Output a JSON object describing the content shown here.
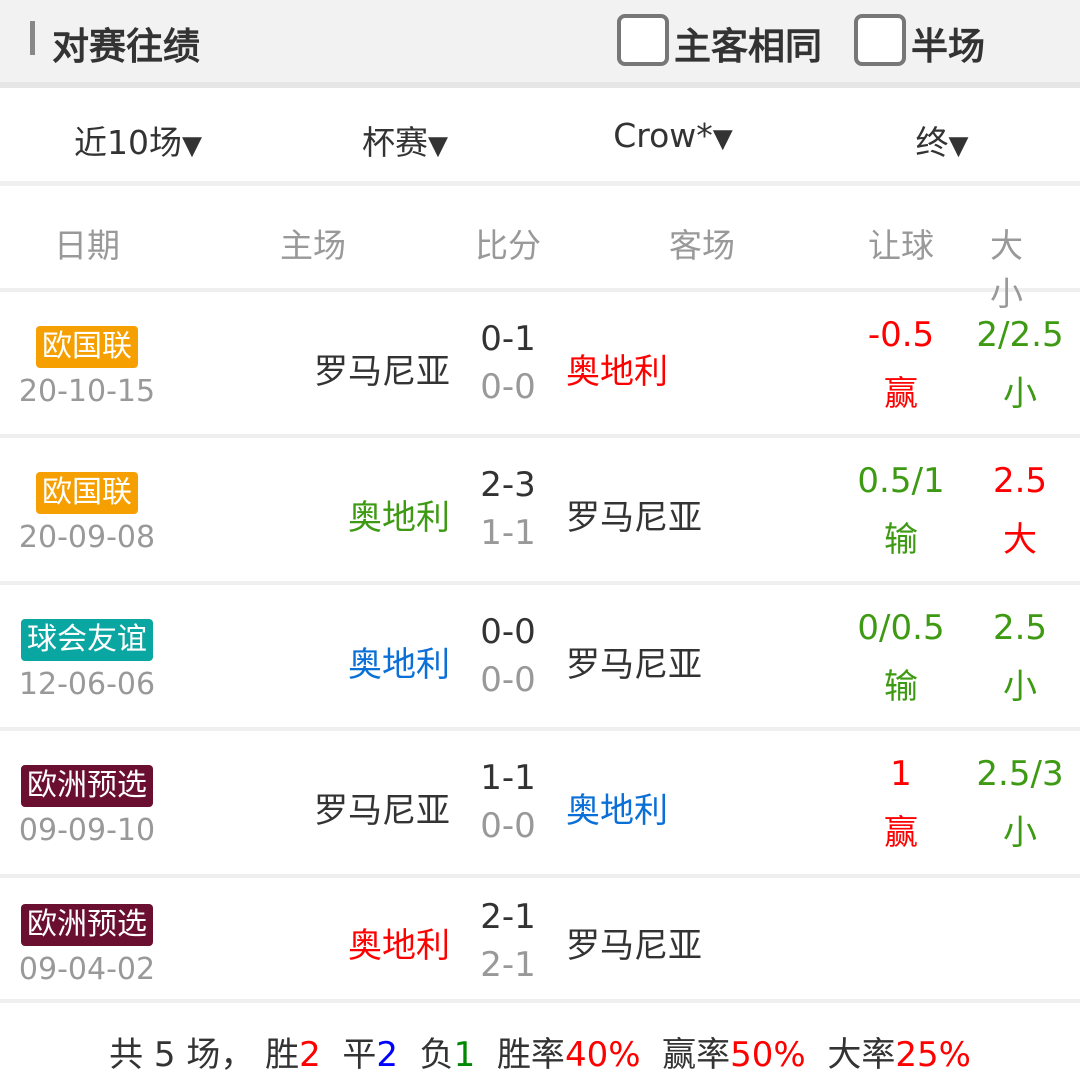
{
  "header": {
    "title": "对赛往绩",
    "same_home_away": "主客相同",
    "half_time": "半场"
  },
  "filters": [
    {
      "label": "近10场"
    },
    {
      "label": "杯赛"
    },
    {
      "label": "Crow*"
    },
    {
      "label": "终"
    }
  ],
  "dropdown_glyph": "▼",
  "columns": [
    "日期",
    "主场",
    "比分",
    "客场",
    "让球",
    "大小"
  ],
  "colors": {
    "red": "#ff0000",
    "green": "#3d9a12",
    "blue": "#0a6fd6",
    "grey": "#999999"
  },
  "rows": [
    {
      "league": "欧国联",
      "league_color": "#f5a000",
      "date": "20-10-15",
      "home": "罗马尼亚",
      "home_color": "#333333",
      "score": "0-1",
      "ht": "0-0",
      "away": "奥地利",
      "away_color": "#ff0000",
      "hcp": "-0.5",
      "hcp_res": "赢",
      "hcp_color": "#ff0000",
      "ou": "2/2.5",
      "ou_res": "小",
      "ou_color": "#3d9a12"
    },
    {
      "league": "欧国联",
      "league_color": "#f5a000",
      "date": "20-09-08",
      "home": "奥地利",
      "home_color": "#3d9a12",
      "score": "2-3",
      "ht": "1-1",
      "away": "罗马尼亚",
      "away_color": "#333333",
      "hcp": "0.5/1",
      "hcp_res": "输",
      "hcp_color": "#3d9a12",
      "ou": "2.5",
      "ou_res": "大",
      "ou_color": "#ff0000"
    },
    {
      "league": "球会友谊",
      "league_color": "#0aa6a2",
      "date": "12-06-06",
      "home": "奥地利",
      "home_color": "#0a6fd6",
      "score": "0-0",
      "ht": "0-0",
      "away": "罗马尼亚",
      "away_color": "#333333",
      "hcp": "0/0.5",
      "hcp_res": "输",
      "hcp_color": "#3d9a12",
      "ou": "2.5",
      "ou_res": "小",
      "ou_color": "#3d9a12"
    },
    {
      "league": "欧洲预选",
      "league_color": "#6b0f30",
      "date": "09-09-10",
      "home": "罗马尼亚",
      "home_color": "#333333",
      "score": "1-1",
      "ht": "0-0",
      "away": "奥地利",
      "away_color": "#0a6fd6",
      "hcp": "1",
      "hcp_res": "赢",
      "hcp_color": "#ff0000",
      "ou": "2.5/3",
      "ou_res": "小",
      "ou_color": "#3d9a12"
    },
    {
      "league": "欧洲预选",
      "league_color": "#6b0f30",
      "date": "09-04-02",
      "home": "奥地利",
      "home_color": "#ff0000",
      "score": "2-1",
      "ht": "2-1",
      "away": "罗马尼亚",
      "away_color": "#333333"
    }
  ],
  "summary": {
    "total_label": "共 5 场，",
    "win_label": "胜",
    "win": "2",
    "draw_label": "平",
    "draw": "2",
    "loss_label": "负",
    "loss": "1",
    "win_rate_label": "胜率",
    "win_rate": "40%",
    "hcp_rate_label": "赢率",
    "hcp_rate": "50%",
    "over_rate_label": "大率",
    "over_rate": "25%"
  }
}
